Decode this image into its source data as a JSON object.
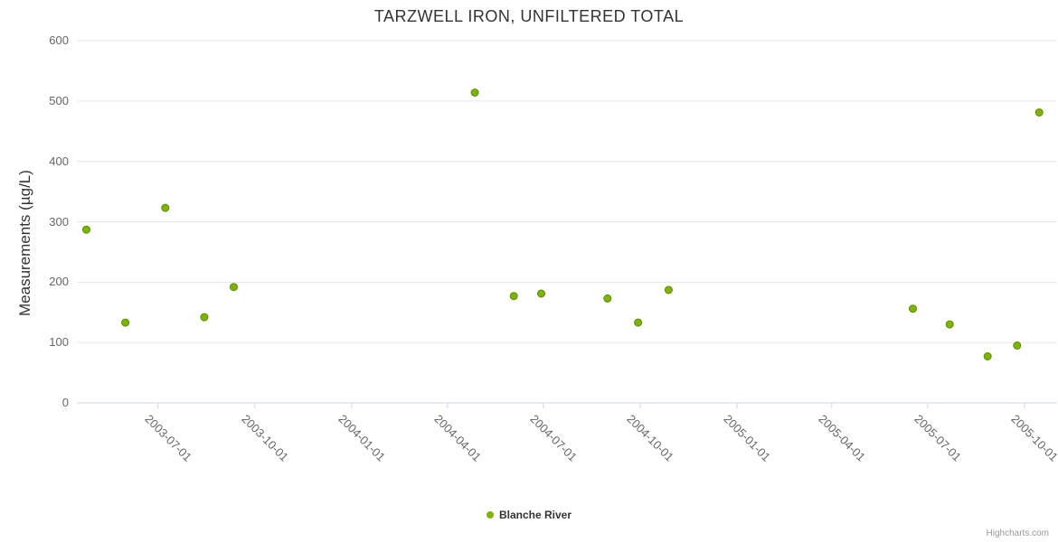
{
  "chart": {
    "title": "TARZWELL IRON, UNFILTERED TOTAL",
    "y_axis_title": "Measurements (µg/L)",
    "credits": "Highcharts.com"
  },
  "legend": {
    "series_label": "Blanche River"
  },
  "colors": {
    "marker": "#7cb400",
    "marker_stroke": "#5d8a00",
    "grid": "#e6e6e6",
    "axis": "#ccd6eb",
    "tick_label": "#666666",
    "title": "#333333"
  },
  "chart_data": {
    "type": "scatter",
    "title": "TARZWELL IRON, UNFILTERED TOTAL",
    "xlabel": "",
    "ylabel": "Measurements (µg/L)",
    "ylim": [
      0,
      600
    ],
    "yticks": [
      0,
      100,
      200,
      300,
      400,
      500,
      600
    ],
    "xlim": [
      "2003-04-15",
      "2005-11-01"
    ],
    "xticks": [
      "2003-07-01",
      "2003-10-01",
      "2004-01-01",
      "2004-04-01",
      "2004-07-01",
      "2004-10-01",
      "2005-01-01",
      "2005-04-01",
      "2005-07-01",
      "2005-10-01"
    ],
    "grid": "horizontal",
    "legend_position": "bottom",
    "series": [
      {
        "name": "Blanche River",
        "color": "#7cb400",
        "stroke": "#5d8a00",
        "points": [
          {
            "x": "2003-04-24",
            "y": 287
          },
          {
            "x": "2003-05-31",
            "y": 133
          },
          {
            "x": "2003-07-08",
            "y": 323
          },
          {
            "x": "2003-08-14",
            "y": 142
          },
          {
            "x": "2003-09-11",
            "y": 192
          },
          {
            "x": "2004-04-27",
            "y": 514
          },
          {
            "x": "2004-06-03",
            "y": 177
          },
          {
            "x": "2004-06-29",
            "y": 181
          },
          {
            "x": "2004-08-31",
            "y": 173
          },
          {
            "x": "2004-09-29",
            "y": 133
          },
          {
            "x": "2004-10-28",
            "y": 187
          },
          {
            "x": "2005-06-17",
            "y": 156
          },
          {
            "x": "2005-07-22",
            "y": 130
          },
          {
            "x": "2005-08-27",
            "y": 77
          },
          {
            "x": "2005-09-24",
            "y": 95
          },
          {
            "x": "2005-10-15",
            "y": 481
          }
        ]
      }
    ]
  }
}
